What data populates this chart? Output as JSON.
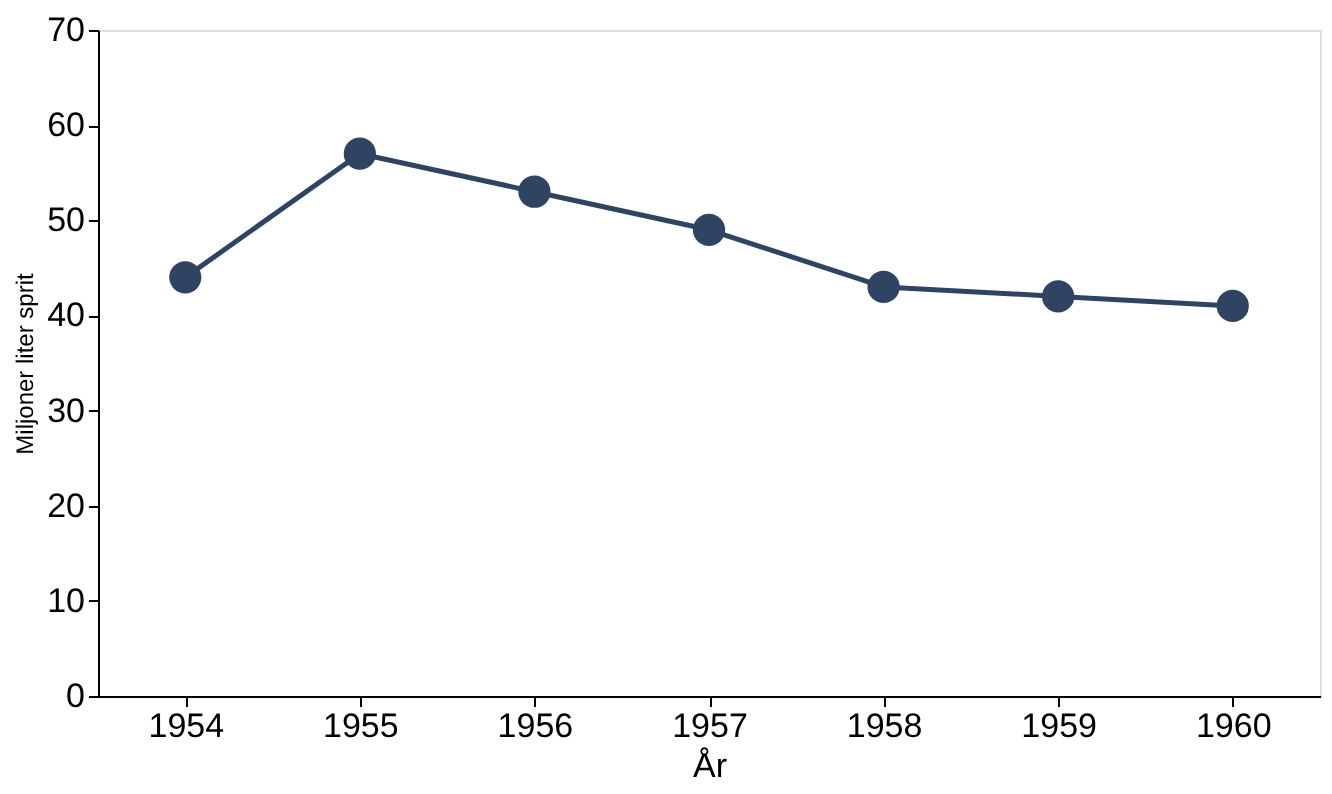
{
  "chart_data": {
    "type": "line",
    "xlabel": "År",
    "ylabel": "Miljoner liter sprit",
    "categories": [
      "1954",
      "1955",
      "1956",
      "1957",
      "1958",
      "1959",
      "1960"
    ],
    "series": [
      {
        "color": "#2e4462",
        "values": [
          44,
          57,
          53,
          49,
          43,
          42,
          41
        ]
      }
    ],
    "ylim": [
      0,
      70
    ],
    "yticks": [
      0,
      10,
      20,
      30,
      40,
      50,
      60,
      70
    ],
    "grid": false,
    "marker": "circle",
    "line_style": "solid"
  }
}
